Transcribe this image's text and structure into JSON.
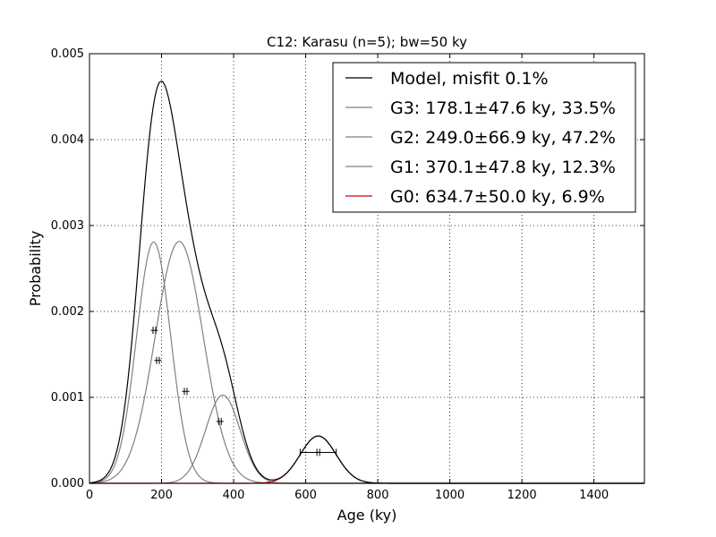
{
  "chart_data": {
    "type": "line",
    "title": "C12: Karasu (n=5); bw=50 ky",
    "xlabel": "Age (ky)",
    "ylabel": "Probability",
    "xlim": [
      0,
      1540
    ],
    "ylim": [
      0,
      0.005
    ],
    "xticks": [
      0,
      200,
      400,
      600,
      800,
      1000,
      1200,
      1400
    ],
    "xtick_labels": [
      "0",
      "200",
      "400",
      "600",
      "800",
      "1000",
      "1200",
      "1400"
    ],
    "yticks": [
      0,
      0.001,
      0.002,
      0.003,
      0.004,
      0.005
    ],
    "ytick_labels": [
      "0.000",
      "0.001",
      "0.002",
      "0.003",
      "0.004",
      "0.005"
    ],
    "grid": true,
    "legend_position": "top-right",
    "series": [
      {
        "name": "Model, misfit 0.1%",
        "kind": "model",
        "color": "#000000"
      },
      {
        "name": "G3: 178.1±47.6 ky, 33.5%",
        "kind": "gaussian",
        "mean": 178.1,
        "sd": 47.6,
        "weight": 0.335,
        "color": "#808080"
      },
      {
        "name": "G2: 249.0±66.9 ky, 47.2%",
        "kind": "gaussian",
        "mean": 249.0,
        "sd": 66.9,
        "weight": 0.472,
        "color": "#808080"
      },
      {
        "name": "G1: 370.1±47.8 ky, 12.3%",
        "kind": "gaussian",
        "mean": 370.1,
        "sd": 47.8,
        "weight": 0.123,
        "color": "#808080"
      },
      {
        "name": "G0: 634.7±50.0 ky, 6.9%",
        "kind": "gaussian",
        "mean": 634.7,
        "sd": 50.0,
        "weight": 0.069,
        "color": "#cc0000"
      }
    ],
    "samples": [
      {
        "age": 180,
        "y": 0.00178
      },
      {
        "age": 190,
        "y": 0.00143
      },
      {
        "age": 267,
        "y": 0.00107
      },
      {
        "age": 362,
        "y": 0.00072
      },
      {
        "age": 635,
        "y": 0.00036
      }
    ],
    "colors": {
      "model": "#000000",
      "component": "#808080",
      "highlight": "#cc0000"
    }
  }
}
